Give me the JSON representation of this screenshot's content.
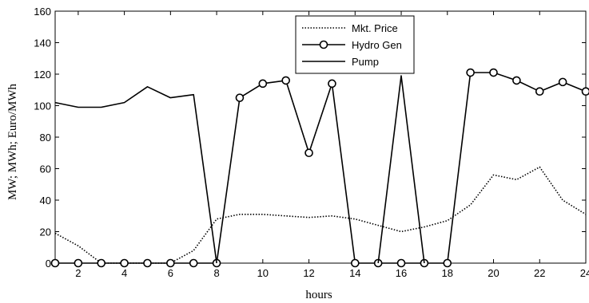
{
  "chart_data": {
    "type": "line",
    "title": "",
    "xlabel": "hours",
    "ylabel": "MW; MWh; Euro/MWh",
    "xlim": [
      1,
      24
    ],
    "ylim": [
      0,
      160
    ],
    "x_ticks": [
      2,
      4,
      6,
      8,
      10,
      12,
      14,
      16,
      18,
      20,
      22,
      24
    ],
    "y_ticks": [
      0,
      20,
      40,
      60,
      80,
      100,
      120,
      140,
      160
    ],
    "grid": false,
    "legend_position": "top-center",
    "x": [
      1,
      2,
      3,
      4,
      5,
      6,
      7,
      8,
      9,
      10,
      11,
      12,
      13,
      14,
      15,
      16,
      17,
      18,
      19,
      20,
      21,
      22,
      23,
      24
    ],
    "series": [
      {
        "name": "Mkt. Price",
        "style": "dotted",
        "marker": "none",
        "color": "#000000",
        "values": [
          19,
          11,
          0,
          0,
          0,
          0,
          8,
          28,
          31,
          31,
          30,
          29,
          30,
          28,
          24,
          20,
          23,
          27,
          37,
          56,
          53,
          61,
          40,
          31
        ]
      },
      {
        "name": "Hydro Gen",
        "style": "solid",
        "marker": "circle",
        "color": "#000000",
        "values": [
          0,
          0,
          0,
          0,
          0,
          0,
          0,
          0,
          105,
          114,
          116,
          70,
          114,
          0,
          0,
          0,
          0,
          0,
          121,
          121,
          116,
          109,
          115,
          109
        ]
      },
      {
        "name": "Pump",
        "style": "solid",
        "marker": "none",
        "color": "#000000",
        "values": [
          102,
          99,
          99,
          102,
          112,
          105,
          107,
          0,
          null,
          null,
          null,
          null,
          null,
          null,
          0,
          119,
          0,
          null,
          null,
          null,
          null,
          null,
          null,
          null
        ]
      }
    ]
  }
}
